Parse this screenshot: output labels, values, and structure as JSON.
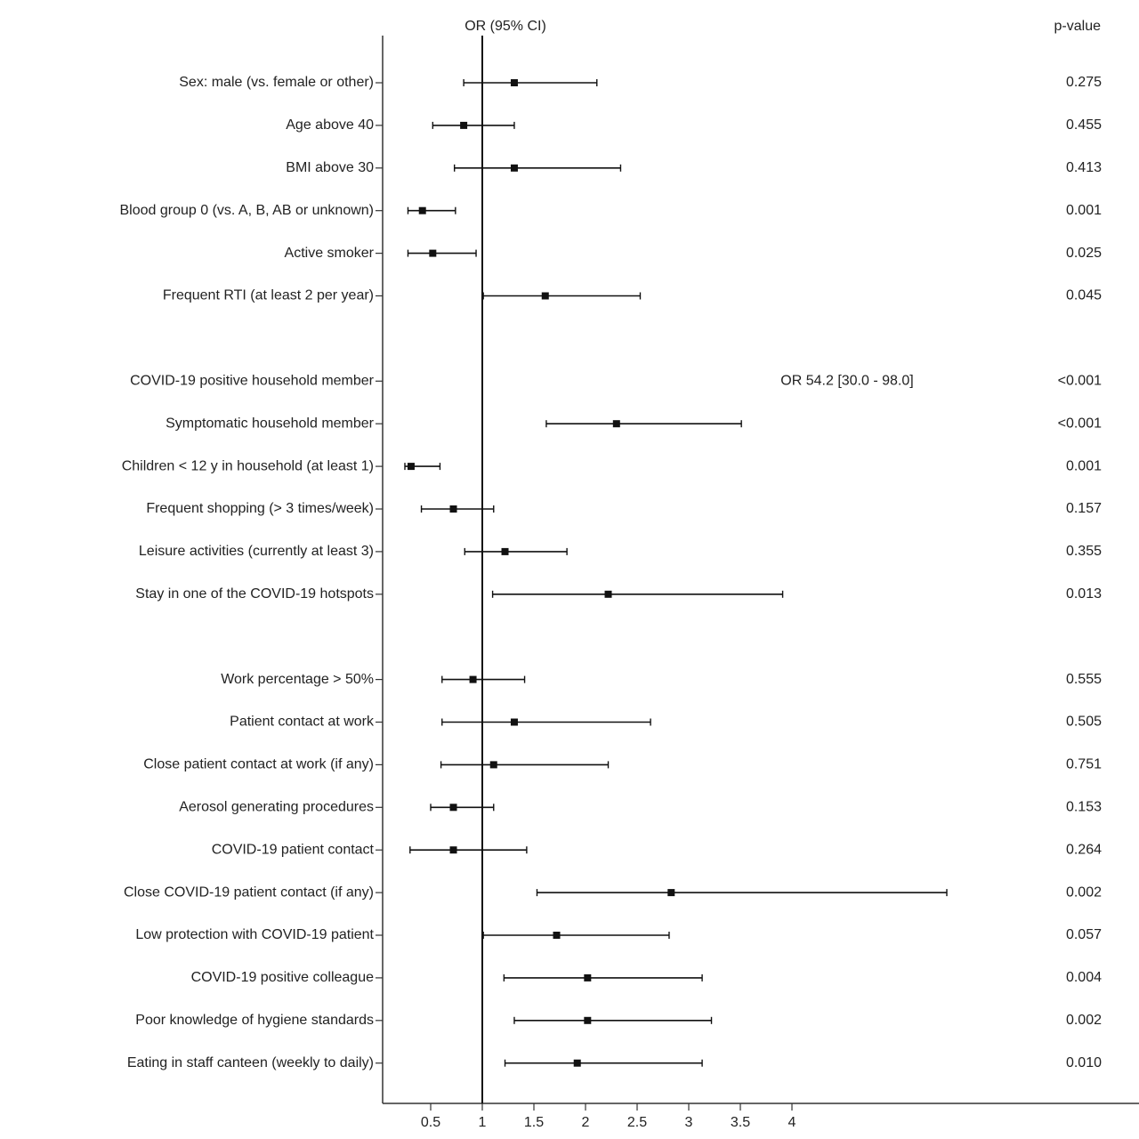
{
  "chart_data": {
    "type": "forest",
    "title": "OR (95% CI)",
    "p_header": "p-value",
    "categories": [
      "Sex: male (vs. female or other)",
      "Age above 40",
      "BMI above 30",
      "Blood group 0 (vs. A, B, AB or unknown)",
      "Active smoker",
      "Frequent RTI (at least 2 per year)",
      null,
      "COVID-19 positive household member",
      "Symptomatic household member",
      "Children < 12 y in household (at least 1)",
      "Frequent shopping (> 3 times/week)",
      "Leisure activities (currently at least 3)",
      "Stay in one of the COVID-19 hotspots",
      null,
      "Work percentage > 50%",
      "Patient contact at work",
      "Close patient contact at work (if any)",
      "Aerosol generating procedures",
      "COVID-19 patient contact",
      "Close COVID-19 patient contact (if any)",
      "Low protection with COVID-19 patient",
      "COVID-19 positive colleague",
      "Poor knowledge of hygiene standards",
      "Eating in staff canteen (weekly to daily)"
    ],
    "values": [
      1.31,
      0.82,
      1.31,
      0.42,
      0.52,
      1.61,
      null,
      54.2,
      2.3,
      0.31,
      0.72,
      1.22,
      2.22,
      null,
      0.91,
      1.31,
      1.11,
      0.72,
      0.72,
      2.83,
      1.72,
      2.02,
      2.02,
      1.92
    ],
    "lower": [
      0.82,
      0.52,
      0.73,
      0.28,
      0.28,
      1.01,
      null,
      30.0,
      1.62,
      0.25,
      0.41,
      0.83,
      1.1,
      null,
      0.61,
      0.61,
      0.6,
      0.5,
      0.3,
      1.53,
      1.01,
      1.21,
      1.31,
      1.22
    ],
    "upper": [
      2.11,
      1.31,
      2.34,
      0.74,
      0.94,
      2.53,
      null,
      98.0,
      3.51,
      0.59,
      1.11,
      1.82,
      3.91,
      null,
      1.41,
      2.63,
      2.22,
      1.11,
      1.43,
      5.5,
      2.81,
      3.13,
      3.22,
      3.13
    ],
    "value_labels": [
      null,
      null,
      null,
      null,
      null,
      null,
      null,
      "OR 54.2 [30.0 - 98.0]",
      null,
      null,
      null,
      null,
      null,
      null,
      null,
      null,
      null,
      null,
      null,
      null,
      null,
      null,
      null,
      null
    ],
    "p_values": [
      "0.275",
      "0.455",
      "0.413",
      "0.001",
      "0.025",
      "0.045",
      null,
      "<0.001",
      "<0.001",
      "0.001",
      "0.157",
      "0.355",
      "0.013",
      null,
      "0.555",
      "0.505",
      "0.751",
      "0.153",
      "0.264",
      "0.002",
      "0.057",
      "0.004",
      "0.002",
      "0.010"
    ],
    "color": "#111111",
    "reference": 1,
    "xlim": [
      0,
      7.2
    ],
    "xticks": [
      0.5,
      1,
      1.5,
      2,
      2.5,
      3,
      3.5,
      4
    ]
  }
}
